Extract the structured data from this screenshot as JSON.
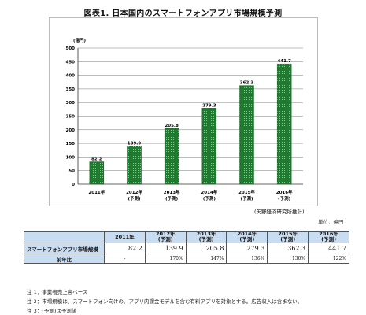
{
  "title": "図表1. 日本国内のスマートフォンアプリ市場規模予測",
  "chart_data": {
    "type": "bar",
    "title": "図表1. 日本国内のスマートフォンアプリ市場規模予測",
    "ylabel": "(億円)",
    "ylim": [
      0,
      500
    ],
    "yticks": [
      0,
      50,
      100,
      150,
      200,
      250,
      300,
      350,
      400,
      450,
      500
    ],
    "grid": true,
    "categories": [
      [
        "2011年",
        ""
      ],
      [
        "2012年",
        "(予測)"
      ],
      [
        "2013年",
        "(予測)"
      ],
      [
        "2014年",
        "(予測)"
      ],
      [
        "2015年",
        "(予測)"
      ],
      [
        "2016年",
        "(予測)"
      ]
    ],
    "values": [
      82.2,
      139.9,
      205.8,
      279.3,
      362.3,
      441.7
    ],
    "value_labels": [
      "82.2",
      "139.9",
      "205.8",
      "279.3",
      "362.3",
      "441.7"
    ],
    "bar_color": "#1e7a2e"
  },
  "source": "(矢野経済研究所推計)",
  "unit": "単位：億円",
  "table": {
    "headers": [
      {
        "year": "2011年",
        "sub": ""
      },
      {
        "year": "2012年",
        "sub": "(予測)"
      },
      {
        "year": "2013年",
        "sub": "(予測)"
      },
      {
        "year": "2014年",
        "sub": "(予測)"
      },
      {
        "year": "2015年",
        "sub": "(予測)"
      },
      {
        "year": "2016年",
        "sub": "(予測)"
      }
    ],
    "row1_label": "スマートフォンアプリ市場規模",
    "row1": [
      "82.2",
      "139.9",
      "205.8",
      "279.3",
      "362.3",
      "441.7"
    ],
    "row2_label": "前年比",
    "row2": [
      "-",
      "170%",
      "147%",
      "136%",
      "130%",
      "122%"
    ],
    "header_color": "#c9ddf2"
  },
  "notes": [
    "注 1：事業者売上高ベース",
    "注 2：市場規模は、スマートフォン向けの、アプリ内課金モデルを含む有料アプリを対象とする。広告収入は含まない。",
    "注 3：(予測)は予測値"
  ]
}
